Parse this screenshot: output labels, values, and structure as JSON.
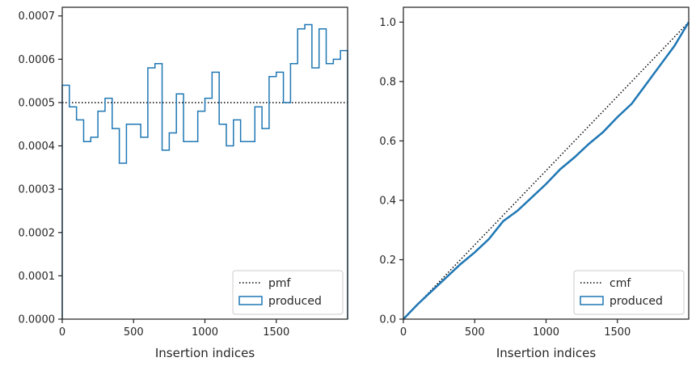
{
  "colors": {
    "series": "#1f77b4",
    "reference": "#000000",
    "axes": "#262626"
  },
  "chart_data": [
    {
      "type": "histogram-step",
      "xlabel": "Insertion indices",
      "ylabel": "",
      "xlim": [
        0,
        2000
      ],
      "ylim": [
        0,
        0.00072
      ],
      "xticks": [
        0,
        500,
        1000,
        1500
      ],
      "xtick_labels": [
        "0",
        "500",
        "1000",
        "1500"
      ],
      "yticks": [
        0,
        0.0001,
        0.0002,
        0.0003,
        0.0004,
        0.0005,
        0.0006,
        0.0007
      ],
      "ytick_labels": [
        "0.0000",
        "0.0001",
        "0.0002",
        "0.0003",
        "0.0004",
        "0.0005",
        "0.0006",
        "0.0007"
      ],
      "legend": {
        "placement": "lower-right",
        "entries": [
          "pmf",
          "produced"
        ]
      },
      "series": [
        {
          "name": "pmf",
          "style": "dotted",
          "x": [
            0,
            2000
          ],
          "y": [
            0.0005,
            0.0005
          ]
        },
        {
          "name": "produced",
          "style": "step",
          "bin_width": 50,
          "bin_start": 0,
          "values": [
            0.00054,
            0.00049,
            0.00046,
            0.00041,
            0.00042,
            0.00048,
            0.00051,
            0.00044,
            0.00036,
            0.00045,
            0.00045,
            0.00042,
            0.00058,
            0.00059,
            0.00039,
            0.00043,
            0.00052,
            0.00041,
            0.00041,
            0.00048,
            0.00051,
            0.00057,
            0.00045,
            0.0004,
            0.00046,
            0.00041,
            0.00041,
            0.00049,
            0.00044,
            0.00056,
            0.00057,
            0.0005,
            0.00059,
            0.00067,
            0.00068,
            0.00058,
            0.00067,
            0.00059,
            0.0006,
            0.00062
          ]
        }
      ]
    },
    {
      "type": "line",
      "xlabel": "Insertion indices",
      "ylabel": "",
      "xlim": [
        0,
        2000
      ],
      "ylim": [
        0,
        1.05
      ],
      "xticks": [
        0,
        500,
        1000,
        1500
      ],
      "xtick_labels": [
        "0",
        "500",
        "1000",
        "1500"
      ],
      "yticks": [
        0,
        0.2,
        0.4,
        0.6,
        0.8,
        1.0
      ],
      "ytick_labels": [
        "0.0",
        "0.2",
        "0.4",
        "0.6",
        "0.8",
        "1.0"
      ],
      "legend": {
        "placement": "lower-right",
        "entries": [
          "cmf",
          "produced"
        ]
      },
      "series": [
        {
          "name": "cmf",
          "style": "dotted",
          "x": [
            0,
            2000
          ],
          "y": [
            0,
            1.0
          ]
        },
        {
          "name": "produced",
          "style": "solid",
          "x": [
            0,
            100,
            200,
            300,
            400,
            500,
            600,
            650,
            700,
            800,
            900,
            1000,
            1100,
            1200,
            1300,
            1400,
            1500,
            1600,
            1700,
            1800,
            1900,
            2000
          ],
          "y": [
            0,
            0.05,
            0.095,
            0.14,
            0.185,
            0.225,
            0.27,
            0.3,
            0.33,
            0.365,
            0.41,
            0.455,
            0.505,
            0.545,
            0.59,
            0.63,
            0.68,
            0.725,
            0.79,
            0.855,
            0.92,
            1.0
          ]
        }
      ]
    }
  ]
}
